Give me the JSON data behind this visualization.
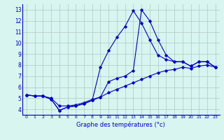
{
  "xlabel": "Graphe des températures (°c)",
  "hours": [
    0,
    1,
    2,
    3,
    4,
    5,
    6,
    7,
    8,
    9,
    10,
    11,
    12,
    13,
    14,
    15,
    16,
    17,
    18,
    19,
    20,
    21,
    22,
    23
  ],
  "line1": [
    5.3,
    5.2,
    5.2,
    5.0,
    4.3,
    4.3,
    4.4,
    4.6,
    4.9,
    5.1,
    5.5,
    5.8,
    6.1,
    6.4,
    6.7,
    7.0,
    7.3,
    7.5,
    7.6,
    7.8,
    7.7,
    7.9,
    8.0,
    7.8
  ],
  "line2": [
    5.3,
    5.2,
    5.2,
    4.9,
    3.9,
    4.2,
    4.3,
    4.5,
    4.8,
    7.8,
    9.3,
    10.5,
    11.5,
    12.9,
    11.8,
    10.3,
    8.9,
    8.5,
    8.3,
    8.3,
    7.9,
    8.3,
    8.3,
    7.8
  ],
  "line3": [
    5.3,
    5.2,
    5.2,
    4.9,
    3.9,
    4.2,
    4.3,
    4.5,
    4.8,
    5.1,
    6.5,
    6.8,
    7.0,
    7.5,
    13.0,
    12.0,
    10.3,
    8.9,
    8.3,
    8.3,
    7.9,
    8.3,
    8.3,
    7.8
  ],
  "line_color": "#0000cc",
  "bg_color": "#d8f5f0",
  "grid_color": "#b0c8c0",
  "ylim": [
    3.5,
    13.5
  ],
  "yticks": [
    4,
    5,
    6,
    7,
    8,
    9,
    10,
    11,
    12,
    13
  ],
  "xlim": [
    -0.5,
    23.5
  ],
  "xticks": [
    0,
    1,
    2,
    3,
    4,
    5,
    6,
    7,
    8,
    9,
    10,
    11,
    12,
    13,
    14,
    15,
    16,
    17,
    18,
    19,
    20,
    21,
    22,
    23
  ]
}
